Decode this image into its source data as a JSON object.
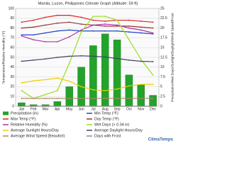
{
  "chart_data": {
    "type": "combo",
    "title": "Manila, Luzon, Philippines Climate Graph (Altitude: 59 ft)",
    "y_label": "Temperature/Relative Humidity (°F)",
    "y2_label": "Precipitation/Wet Days/Sunlight/Daylight/Wind Speed/Frost",
    "watermark": "ClimaTemps",
    "categories": [
      "Jan",
      "Feb",
      "Mar",
      "Apr",
      "May",
      "Jun",
      "Jul",
      "Aug",
      "Sep",
      "Oct",
      "Nov",
      "Dec"
    ],
    "ylim": [
      0,
      100
    ],
    "yticks": [
      0,
      10,
      20,
      30,
      40,
      50,
      60,
      70,
      80,
      90,
      100
    ],
    "y2lim": [
      0,
      25
    ],
    "y2ticks": [
      0,
      2.5,
      5,
      7.5,
      10,
      12.5,
      15,
      17.5,
      20,
      22.5,
      25
    ],
    "grid": true,
    "series": [
      {
        "name": "Precipitation (in)",
        "type": "bar",
        "axis": "y2",
        "color": "#22a32a",
        "values": [
          0.9,
          0.4,
          0.4,
          1.2,
          5.0,
          10.0,
          15.5,
          18.5,
          17.0,
          8.0,
          5.5,
          2.8
        ]
      },
      {
        "name": "Min Temp (°F)",
        "type": "line",
        "color": "#2244cc",
        "values": [
          73,
          73,
          75,
          77,
          78,
          77,
          77,
          77,
          77,
          76,
          75,
          74
        ]
      },
      {
        "name": "Max Temp (°F)",
        "type": "line",
        "color": "#dd2222",
        "values": [
          86,
          88,
          91,
          93,
          93,
          91,
          88,
          87,
          88,
          88,
          87,
          86
        ]
      },
      {
        "name": "Day Temp (°F)",
        "type": "line",
        "color": "#993333",
        "values": [
          80,
          81,
          83,
          85,
          86,
          84,
          83,
          82,
          82,
          82,
          81,
          80
        ]
      },
      {
        "name": "Relative Humidity (%)",
        "type": "line",
        "color": "#aa33aa",
        "values": [
          72,
          68,
          66,
          66,
          71,
          78,
          83,
          84,
          83,
          80,
          78,
          75
        ]
      },
      {
        "name": "Wet Days (> 0.04 in)",
        "type": "line",
        "axis": "y2",
        "color": "#99dd22",
        "values": [
          4,
          2,
          3,
          4,
          11,
          19,
          23,
          23,
          22,
          17,
          12,
          8
        ]
      },
      {
        "name": "Average Sunlight Hours/Day",
        "type": "line",
        "axis": "y2",
        "color": "#eecc00",
        "values": [
          6.0,
          6.5,
          6.8,
          7.2,
          6.4,
          5.0,
          4.2,
          4.0,
          4.4,
          5.2,
          5.6,
          5.6
        ]
      },
      {
        "name": "Average Daylight Hours/Day",
        "type": "line",
        "axis": "y2",
        "color": "#444466",
        "values": [
          11.5,
          11.8,
          12.1,
          12.5,
          12.8,
          12.9,
          12.8,
          12.6,
          12.2,
          11.8,
          11.5,
          11.4
        ]
      },
      {
        "name": "Average Wind Speed (Beaufort)",
        "type": "line",
        "axis": "y2",
        "color": "#aa8866",
        "values": [
          2,
          2,
          2,
          2,
          2,
          2,
          2,
          2,
          2,
          2,
          2,
          2
        ]
      },
      {
        "name": "Days with Frost",
        "type": "line",
        "axis": "y2",
        "color": "#888888",
        "values": [
          0,
          0,
          0,
          0,
          0,
          0,
          0,
          0,
          0,
          0,
          0,
          0
        ]
      }
    ]
  }
}
